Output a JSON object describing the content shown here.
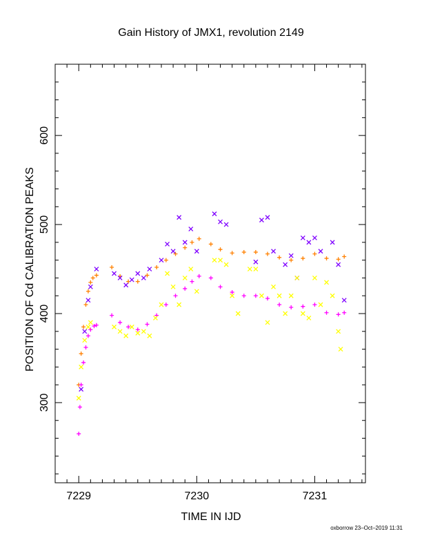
{
  "chart_data": {
    "type": "scatter",
    "title": "Gain History of JMX1, revolution 2149",
    "xlabel": "TIME IN IJD",
    "ylabel": "POSITION OF Cd CALIBRATION PEAKS",
    "xlim": [
      7228.8,
      7231.43
    ],
    "ylim": [
      210,
      680
    ],
    "x_ticks": [
      7229,
      7230,
      7231
    ],
    "x_tick_labels": [
      "7229",
      "7230",
      "7231"
    ],
    "y_ticks": [
      300,
      400,
      500,
      600
    ],
    "y_tick_labels": [
      "300",
      "400",
      "500",
      "600"
    ],
    "grid": false,
    "legend": "none",
    "series": [
      {
        "marker": "plus",
        "color": "#ff8000",
        "x": [
          7229.0,
          7229.02,
          7229.04,
          7229.06,
          7229.08,
          7229.1,
          7229.12,
          7229.15,
          7229.28,
          7229.35,
          7229.42,
          7229.5,
          7229.58,
          7229.66,
          7229.74,
          7229.82,
          7229.9,
          7229.96,
          7230.02,
          7230.12,
          7230.2,
          7230.3,
          7230.4,
          7230.5,
          7230.6,
          7230.7,
          7230.8,
          7230.9,
          7231.0,
          7231.1,
          7231.2,
          7231.25
        ],
        "y": [
          320,
          355,
          385,
          410,
          425,
          435,
          440,
          443,
          452,
          442,
          436,
          436,
          443,
          452,
          460,
          467,
          474,
          480,
          484,
          478,
          472,
          468,
          469,
          469,
          467,
          463,
          460,
          462,
          467,
          462,
          461,
          464
        ]
      },
      {
        "marker": "plus",
        "color": "#ff00ff",
        "x": [
          7229.0,
          7229.01,
          7229.02,
          7229.04,
          7229.06,
          7229.08,
          7229.1,
          7229.13,
          7229.15,
          7229.28,
          7229.35,
          7229.42,
          7229.5,
          7229.58,
          7229.66,
          7229.74,
          7229.82,
          7229.9,
          7229.96,
          7230.02,
          7230.12,
          7230.2,
          7230.3,
          7230.4,
          7230.5,
          7230.6,
          7230.7,
          7230.8,
          7230.9,
          7231.0,
          7231.1,
          7231.2,
          7231.25
        ],
        "y": [
          265,
          295,
          320,
          345,
          362,
          375,
          382,
          386,
          387,
          398,
          390,
          385,
          382,
          388,
          398,
          410,
          420,
          428,
          436,
          442,
          440,
          430,
          424,
          420,
          420,
          417,
          410,
          407,
          408,
          410,
          401,
          399,
          401
        ]
      },
      {
        "marker": "cross",
        "color": "#7f00ff",
        "x": [
          7229.02,
          7229.05,
          7229.08,
          7229.1,
          7229.15,
          7229.3,
          7229.35,
          7229.4,
          7229.45,
          7229.5,
          7229.55,
          7229.6,
          7229.7,
          7229.75,
          7229.8,
          7229.85,
          7229.9,
          7229.95,
          7230.0,
          7230.15,
          7230.2,
          7230.25,
          7230.5,
          7230.55,
          7230.6,
          7230.65,
          7230.75,
          7230.8,
          7230.85,
          7230.9,
          7230.95,
          7231.0,
          7231.05,
          7231.15,
          7231.2,
          7231.25
        ],
        "y": [
          315,
          380,
          415,
          430,
          450,
          445,
          440,
          432,
          438,
          445,
          440,
          450,
          460,
          478,
          470,
          508,
          480,
          495,
          470,
          512,
          503,
          500,
          458,
          505,
          508,
          470,
          455,
          465,
          440,
          485,
          480,
          485,
          470,
          480,
          455,
          415
        ]
      },
      {
        "marker": "cross",
        "color": "#ffff00",
        "x": [
          7229.0,
          7229.02,
          7229.05,
          7229.08,
          7229.1,
          7229.3,
          7229.35,
          7229.4,
          7229.45,
          7229.5,
          7229.55,
          7229.6,
          7229.65,
          7229.7,
          7229.75,
          7229.8,
          7229.85,
          7229.9,
          7229.95,
          7230.0,
          7230.15,
          7230.2,
          7230.25,
          7230.3,
          7230.35,
          7230.45,
          7230.5,
          7230.55,
          7230.6,
          7230.65,
          7230.7,
          7230.75,
          7230.8,
          7230.85,
          7230.9,
          7230.95,
          7231.0,
          7231.05,
          7231.1,
          7231.15,
          7231.2,
          7231.22
        ],
        "y": [
          305,
          340,
          370,
          385,
          390,
          385,
          380,
          375,
          385,
          378,
          380,
          375,
          395,
          410,
          445,
          430,
          410,
          440,
          450,
          425,
          460,
          460,
          455,
          420,
          400,
          450,
          450,
          420,
          390,
          430,
          420,
          400,
          420,
          440,
          400,
          395,
          440,
          410,
          435,
          420,
          380,
          360
        ]
      }
    ]
  },
  "footer": "oxborrow 23–Oct–2019 11:31"
}
